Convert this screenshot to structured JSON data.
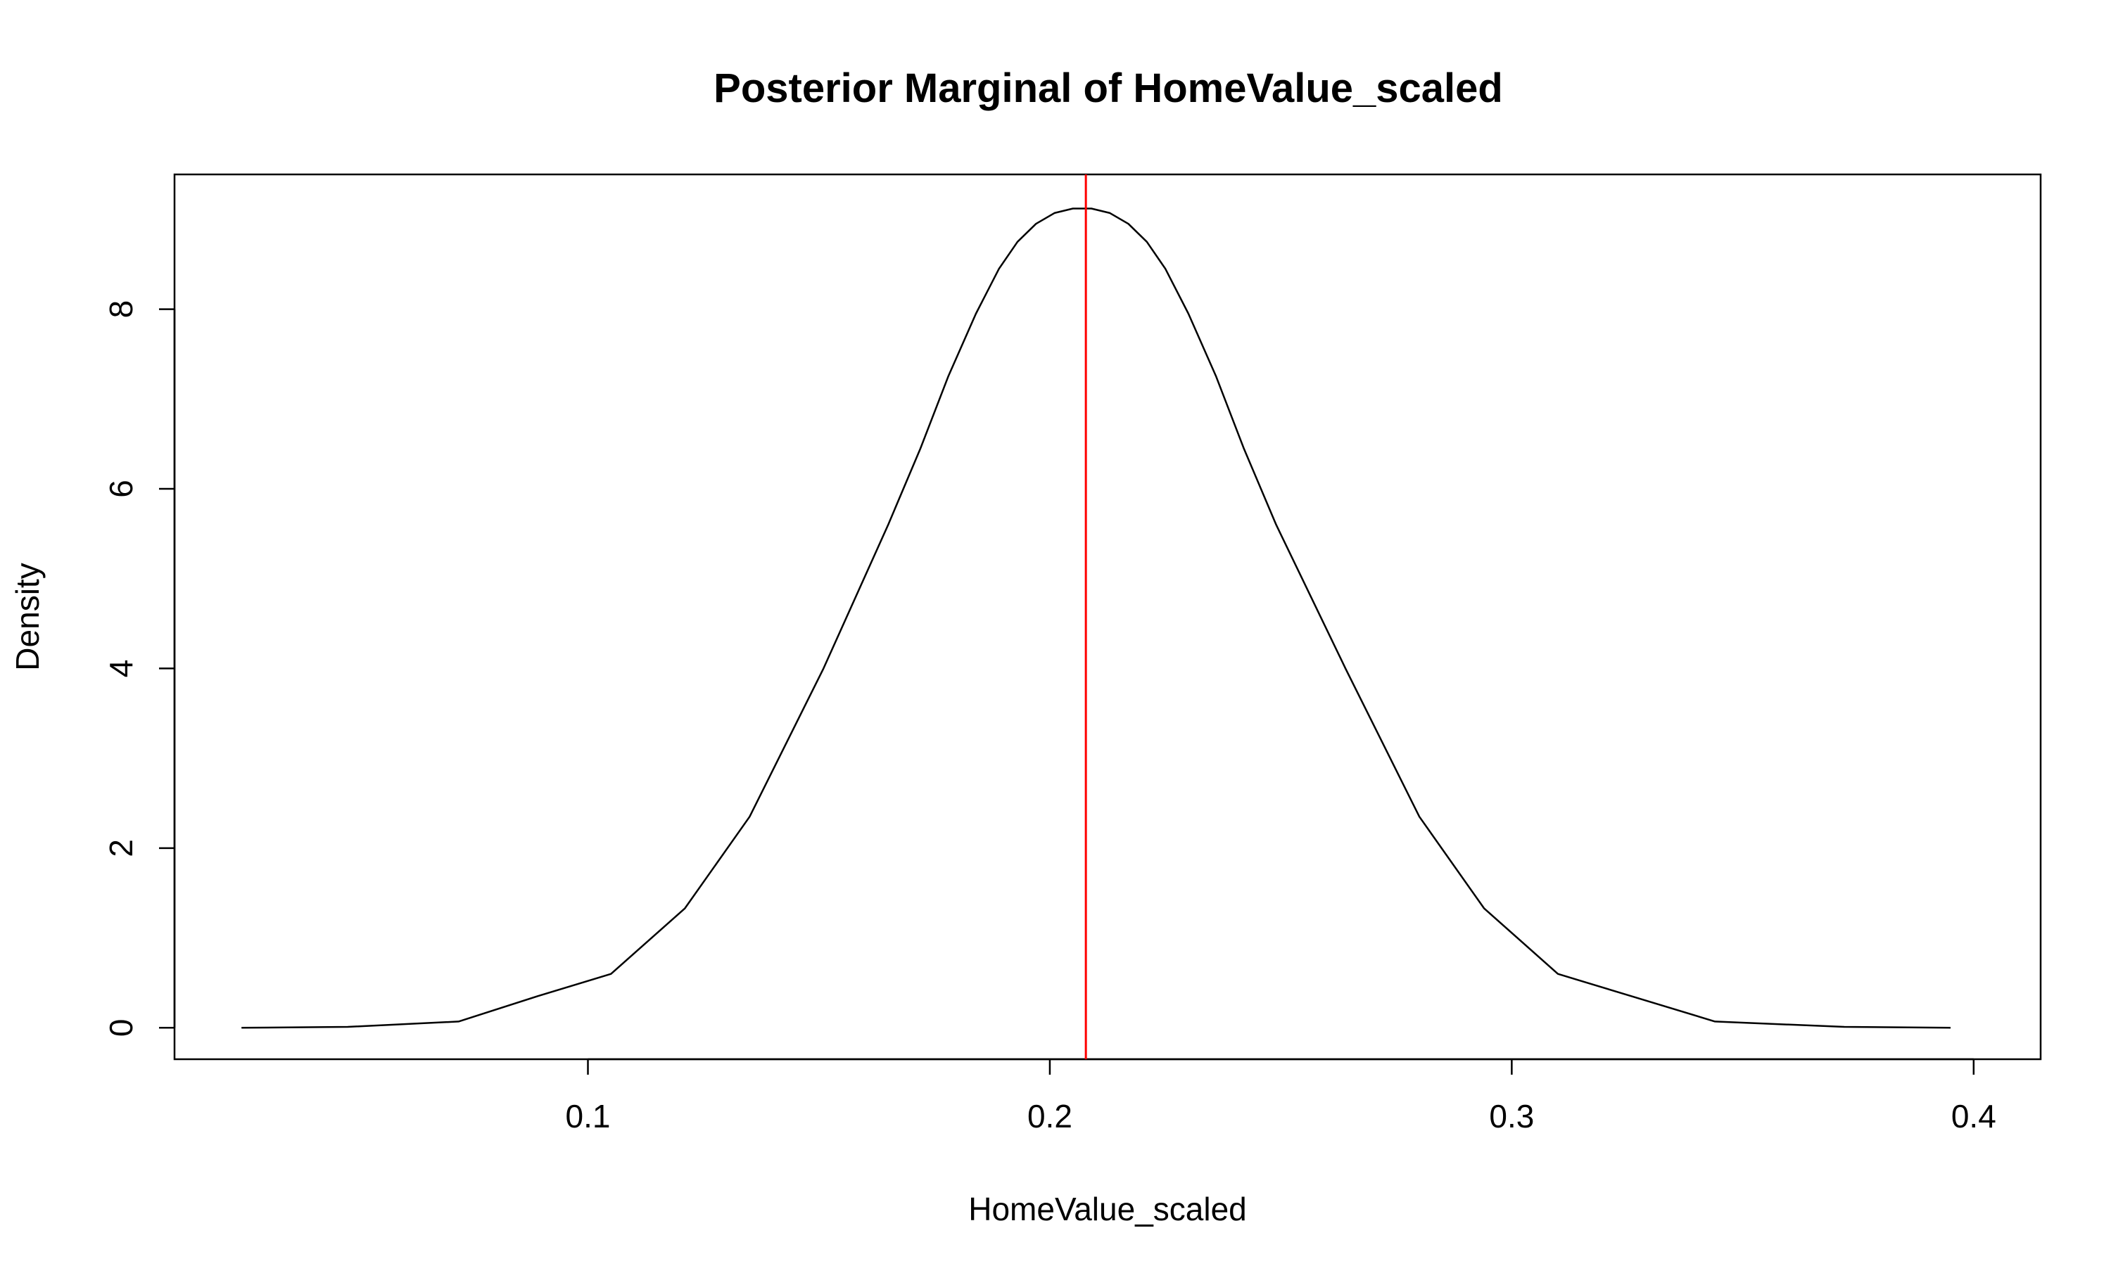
{
  "chart_data": {
    "type": "line",
    "title": "Posterior Marginal of HomeValue_scaled",
    "xlabel": "HomeValue_scaled",
    "ylabel": "Density",
    "xlim": [
      0.0105,
      0.4145
    ],
    "ylim": [
      -0.35,
      9.5
    ],
    "xticks": [
      0.1,
      0.2,
      0.3,
      0.4
    ],
    "yticks": [
      0,
      2,
      4,
      6,
      8
    ],
    "x_tick_labels": [
      "0.1",
      "0.2",
      "0.3",
      "0.4"
    ],
    "y_tick_labels": [
      "0",
      "2",
      "4",
      "6",
      "8"
    ],
    "grid": false,
    "series": [
      {
        "color": "#000000",
        "x": [
          0.025,
          0.048,
          0.072,
          0.089,
          0.105,
          0.121,
          0.135,
          0.151,
          0.165,
          0.172,
          0.178,
          0.184,
          0.189,
          0.193,
          0.197,
          0.201,
          0.205,
          0.209,
          0.213,
          0.217,
          0.221,
          0.225,
          0.23,
          0.236,
          0.242,
          0.249,
          0.264,
          0.28,
          0.294,
          0.31,
          0.326,
          0.344,
          0.372,
          0.395
        ],
        "y": [
          0.0,
          0.01,
          0.07,
          0.35,
          0.6,
          1.33,
          2.35,
          4.0,
          5.6,
          6.45,
          7.25,
          7.95,
          8.45,
          8.75,
          8.95,
          9.07,
          9.12,
          9.12,
          9.07,
          8.95,
          8.75,
          8.45,
          7.95,
          7.25,
          6.45,
          5.6,
          4.0,
          2.35,
          1.33,
          0.6,
          0.35,
          0.07,
          0.01,
          0.0
        ]
      }
    ],
    "vertical_lines": [
      {
        "x": 0.2078,
        "color": "#ff0000"
      }
    ]
  }
}
